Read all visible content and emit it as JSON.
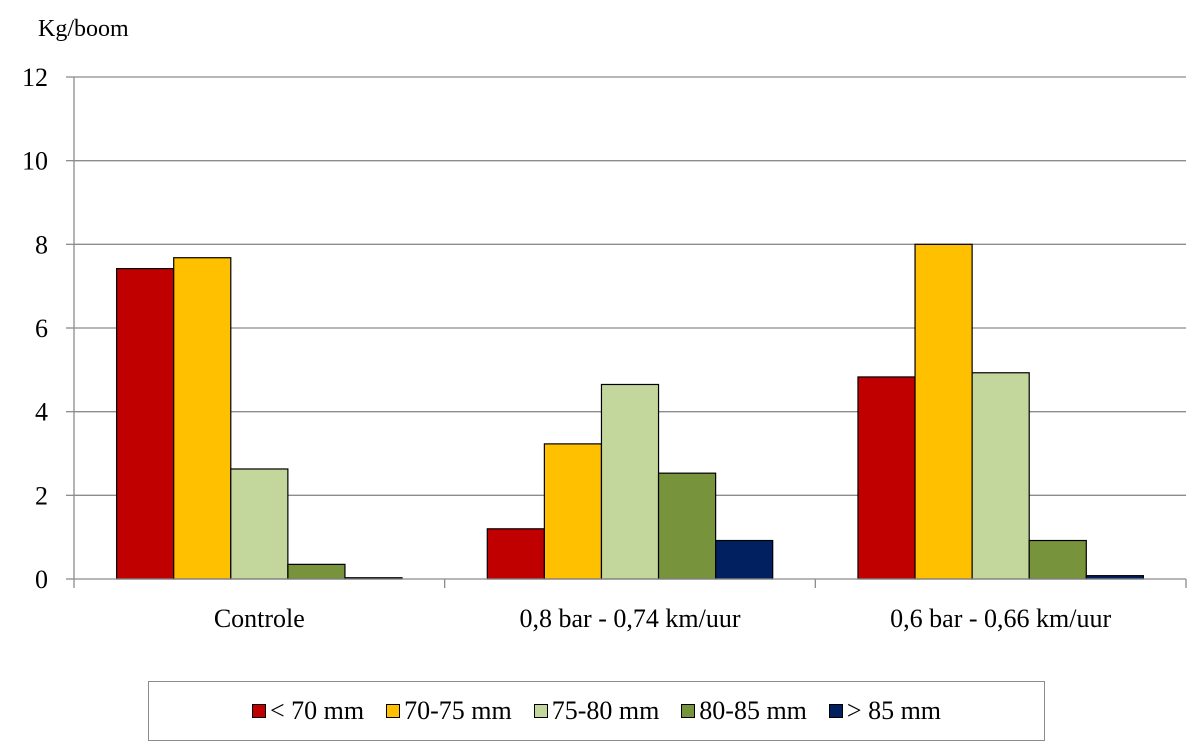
{
  "chart_data": {
    "type": "bar",
    "ylabel": "Kg/boom",
    "xlabel": "",
    "ylim": [
      0,
      12
    ],
    "yticks": [
      0,
      2,
      4,
      6,
      8,
      10,
      12
    ],
    "ytick_labels": [
      "0",
      "2",
      "4",
      "6",
      "8",
      "10",
      "12"
    ],
    "grid": true,
    "legend_position": "bottom",
    "categories": [
      "Controle",
      "0,8 bar - 0,74 km/uur",
      "0,6 bar - 0,66 km/uur"
    ],
    "series": [
      {
        "name": "< 70 mm",
        "color": "#c00000",
        "values": [
          7.42,
          1.2,
          4.83
        ]
      },
      {
        "name": "70-75 mm",
        "color": "#ffc000",
        "values": [
          7.68,
          3.23,
          8.0
        ]
      },
      {
        "name": "75-80 mm",
        "color": "#c3d69b",
        "values": [
          2.63,
          4.65,
          4.93
        ]
      },
      {
        "name": "80-85 mm",
        "color": "#77933c",
        "values": [
          0.35,
          2.53,
          0.92
        ]
      },
      {
        "name": "> 85 mm",
        "color": "#002060",
        "values": [
          0.03,
          0.92,
          0.08
        ]
      }
    ]
  }
}
